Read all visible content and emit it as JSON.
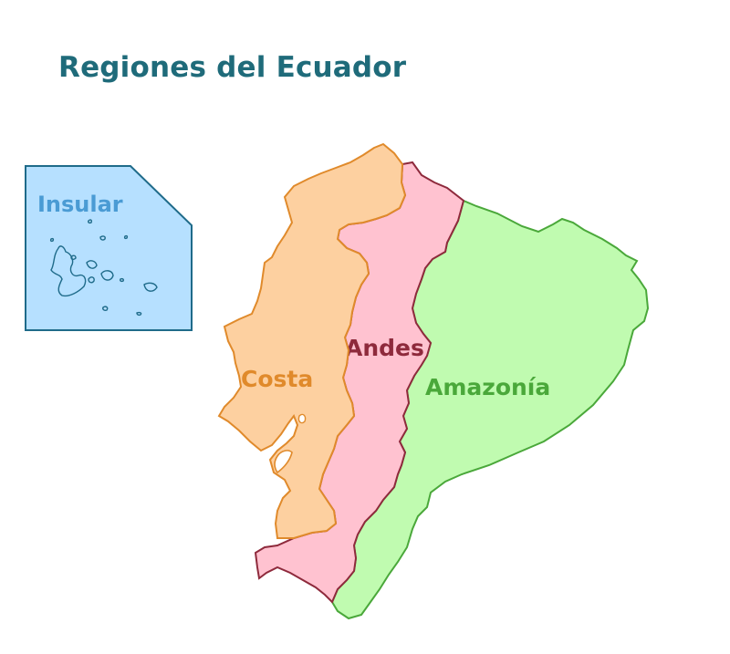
{
  "title": "Regiones del Ecuador",
  "regions": {
    "insular": {
      "label": "Insular",
      "fill": "#b6e0ff",
      "stroke": "#1f6b8a",
      "text": "#4a9bd4"
    },
    "costa": {
      "label": "Costa",
      "fill": "#fdd0a0",
      "stroke": "#e08a2b",
      "text": "#e08a2b"
    },
    "andes": {
      "label": "Andes",
      "fill": "#ffc2d0",
      "stroke": "#8e2a3c",
      "text": "#8e2a3c"
    },
    "amazonia": {
      "label": "Amazonía",
      "fill": "#c0fbb0",
      "stroke": "#4aa83a",
      "text": "#4aa83a"
    }
  },
  "colors": {
    "title": "#1f6b7a"
  }
}
